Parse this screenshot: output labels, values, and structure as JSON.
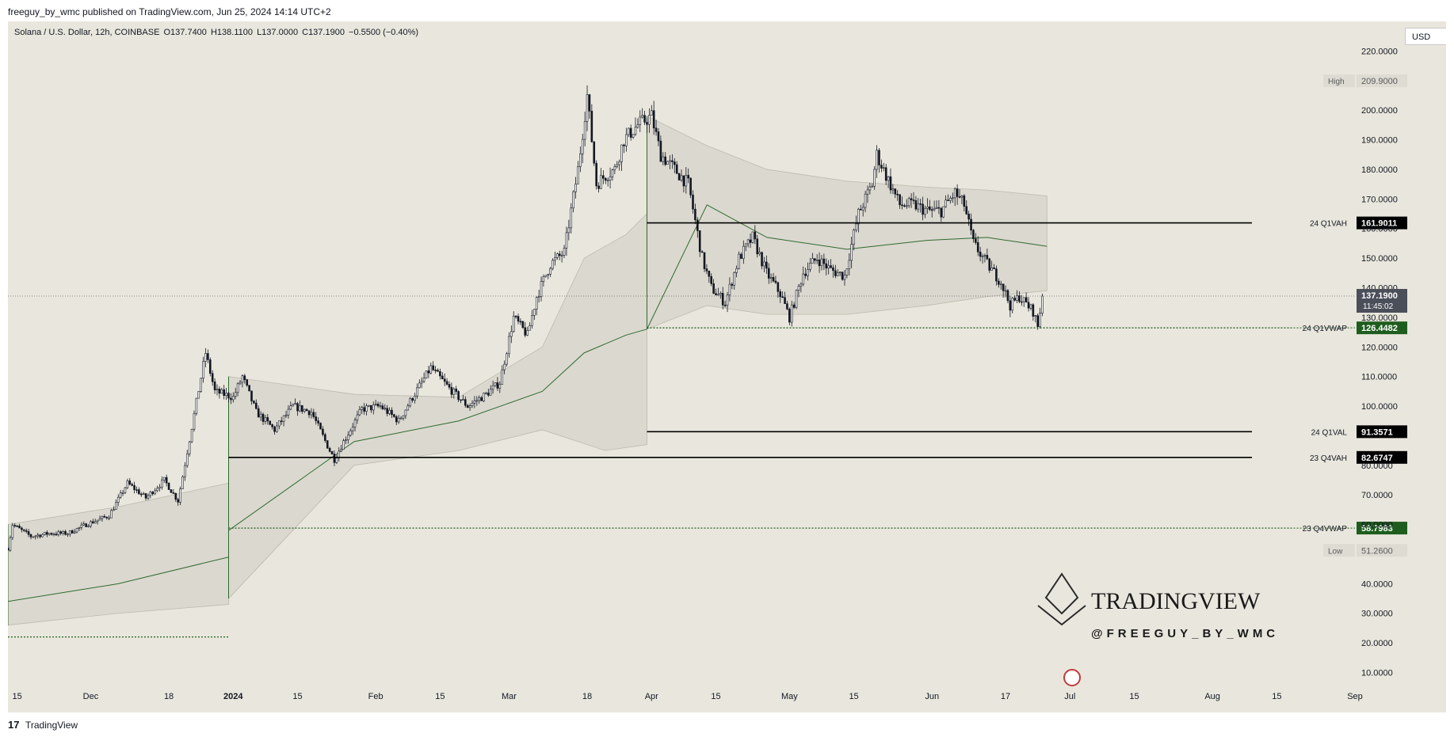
{
  "header": {
    "published": "freeguy_by_wmc published on TradingView.com, Jun 25, 2024 14:14 UTC+2"
  },
  "legend": {
    "symbol": "Solana / U.S. Dollar, 12h, COINBASE",
    "open": "O137.7400",
    "high": "H138.1100",
    "low": "L137.0000",
    "close": "C137.1900",
    "change": "−0.5500 (−0.40%)"
  },
  "currency_button": "USD",
  "footer": {
    "brand": "TradingView",
    "logo_glyph": "17"
  },
  "watermark": {
    "title": "TRADINGVIEW",
    "handle": "@FREEGUY_BY_WMC"
  },
  "colors": {
    "background": "#e9e7dd",
    "candle": "#131722",
    "vwap": "#2e6b2e",
    "band": "#d9d6cd",
    "level_label_bg": "#000000",
    "vwap_label_bg": "#1e5d1e"
  },
  "chart_data": {
    "type": "candlestick",
    "symbol": "SOL/USD",
    "interval": "12h",
    "ylim": [
      8,
      230
    ],
    "y_ticks": [
      "10.0000",
      "20.0000",
      "30.0000",
      "40.0000",
      "60.0000",
      "70.0000",
      "80.0000",
      "100.0000",
      "110.0000",
      "120.0000",
      "130.0000",
      "140.0000",
      "150.0000",
      "160.0000",
      "170.0000",
      "180.0000",
      "190.0000",
      "200.0000",
      "220.0000"
    ],
    "x_ticks": [
      {
        "label": "15",
        "date": "2023-11-15"
      },
      {
        "label": "Dec",
        "date": "2023-12-01"
      },
      {
        "label": "18",
        "date": "2023-12-18"
      },
      {
        "label": "2024",
        "date": "2024-01-01"
      },
      {
        "label": "15",
        "date": "2024-01-15"
      },
      {
        "label": "Feb",
        "date": "2024-02-01"
      },
      {
        "label": "15",
        "date": "2024-02-15"
      },
      {
        "label": "Mar",
        "date": "2024-03-01"
      },
      {
        "label": "18",
        "date": "2024-03-18"
      },
      {
        "label": "Apr",
        "date": "2024-04-01"
      },
      {
        "label": "15",
        "date": "2024-04-15"
      },
      {
        "label": "May",
        "date": "2024-05-01"
      },
      {
        "label": "15",
        "date": "2024-05-15"
      },
      {
        "label": "Jun",
        "date": "2024-06-01"
      },
      {
        "label": "17",
        "date": "2024-06-17"
      },
      {
        "label": "Jul",
        "date": "2024-07-01"
      },
      {
        "label": "15",
        "date": "2024-07-15"
      },
      {
        "label": "Aug",
        "date": "2024-08-01"
      },
      {
        "label": "15",
        "date": "2024-08-15"
      },
      {
        "label": "Sep",
        "date": "2024-09-01"
      }
    ],
    "x_range": [
      "2023-11-13",
      "2024-09-01"
    ],
    "series_anchors": [
      {
        "date": "2023-11-13",
        "price": 52
      },
      {
        "date": "2023-11-14",
        "price": 60
      },
      {
        "date": "2023-11-16",
        "price": 58
      },
      {
        "date": "2023-11-18",
        "price": 56
      },
      {
        "date": "2023-11-22",
        "price": 57
      },
      {
        "date": "2023-11-26",
        "price": 57
      },
      {
        "date": "2023-11-30",
        "price": 60
      },
      {
        "date": "2023-12-05",
        "price": 63
      },
      {
        "date": "2023-12-09",
        "price": 74
      },
      {
        "date": "2023-12-13",
        "price": 69
      },
      {
        "date": "2023-12-17",
        "price": 75
      },
      {
        "date": "2023-12-20",
        "price": 68
      },
      {
        "date": "2023-12-23",
        "price": 93
      },
      {
        "date": "2023-12-26",
        "price": 118
      },
      {
        "date": "2023-12-28",
        "price": 105
      },
      {
        "date": "2024-01-01",
        "price": 103
      },
      {
        "date": "2024-01-03",
        "price": 110
      },
      {
        "date": "2024-01-06",
        "price": 98
      },
      {
        "date": "2024-01-10",
        "price": 92
      },
      {
        "date": "2024-01-14",
        "price": 100
      },
      {
        "date": "2024-01-18",
        "price": 98
      },
      {
        "date": "2024-01-22",
        "price": 85
      },
      {
        "date": "2024-01-23",
        "price": 82
      },
      {
        "date": "2024-01-25",
        "price": 88
      },
      {
        "date": "2024-01-29",
        "price": 99
      },
      {
        "date": "2024-02-02",
        "price": 100
      },
      {
        "date": "2024-02-06",
        "price": 95
      },
      {
        "date": "2024-02-09",
        "price": 103
      },
      {
        "date": "2024-02-13",
        "price": 113
      },
      {
        "date": "2024-02-17",
        "price": 106
      },
      {
        "date": "2024-02-21",
        "price": 100
      },
      {
        "date": "2024-02-25",
        "price": 104
      },
      {
        "date": "2024-02-28",
        "price": 108
      },
      {
        "date": "2024-03-02",
        "price": 130
      },
      {
        "date": "2024-03-05",
        "price": 124
      },
      {
        "date": "2024-03-07",
        "price": 137
      },
      {
        "date": "2024-03-10",
        "price": 148
      },
      {
        "date": "2024-03-13",
        "price": 152
      },
      {
        "date": "2024-03-16",
        "price": 180
      },
      {
        "date": "2024-03-18",
        "price": 205
      },
      {
        "date": "2024-03-20",
        "price": 175
      },
      {
        "date": "2024-03-22",
        "price": 178
      },
      {
        "date": "2024-03-24",
        "price": 180
      },
      {
        "date": "2024-03-26",
        "price": 190
      },
      {
        "date": "2024-03-29",
        "price": 195
      },
      {
        "date": "2024-04-01",
        "price": 198
      },
      {
        "date": "2024-04-03",
        "price": 185
      },
      {
        "date": "2024-04-06",
        "price": 180
      },
      {
        "date": "2024-04-09",
        "price": 175
      },
      {
        "date": "2024-04-12",
        "price": 150
      },
      {
        "date": "2024-04-14",
        "price": 140
      },
      {
        "date": "2024-04-17",
        "price": 135
      },
      {
        "date": "2024-04-20",
        "price": 150
      },
      {
        "date": "2024-04-23",
        "price": 157
      },
      {
        "date": "2024-04-26",
        "price": 145
      },
      {
        "date": "2024-04-29",
        "price": 138
      },
      {
        "date": "2024-05-01",
        "price": 130
      },
      {
        "date": "2024-05-04",
        "price": 145
      },
      {
        "date": "2024-05-07",
        "price": 150
      },
      {
        "date": "2024-05-10",
        "price": 146
      },
      {
        "date": "2024-05-13",
        "price": 144
      },
      {
        "date": "2024-05-16",
        "price": 165
      },
      {
        "date": "2024-05-19",
        "price": 175
      },
      {
        "date": "2024-05-20",
        "price": 185
      },
      {
        "date": "2024-05-22",
        "price": 178
      },
      {
        "date": "2024-05-25",
        "price": 168
      },
      {
        "date": "2024-05-28",
        "price": 168
      },
      {
        "date": "2024-05-31",
        "price": 166
      },
      {
        "date": "2024-06-03",
        "price": 166
      },
      {
        "date": "2024-06-06",
        "price": 172
      },
      {
        "date": "2024-06-08",
        "price": 168
      },
      {
        "date": "2024-06-10",
        "price": 155
      },
      {
        "date": "2024-06-13",
        "price": 148
      },
      {
        "date": "2024-06-16",
        "price": 142
      },
      {
        "date": "2024-06-18",
        "price": 134
      },
      {
        "date": "2024-06-20",
        "price": 137
      },
      {
        "date": "2024-06-23",
        "price": 132
      },
      {
        "date": "2024-06-24",
        "price": 127
      },
      {
        "date": "2024-06-25",
        "price": 137.19
      }
    ],
    "high": {
      "label": "High",
      "value": "209.9000",
      "price": 209.9
    },
    "low": {
      "label": "Low",
      "value": "51.2600",
      "price": 51.26
    },
    "current_price": {
      "value": "137.1900",
      "countdown": "11:45:02",
      "price": 137.19
    },
    "levels": [
      {
        "name": "24 Q1VAH",
        "value": "161.9011",
        "price": 161.9011,
        "style": "solid",
        "start": "2024-03-31",
        "end": "2024-06-26",
        "color": "#000000"
      },
      {
        "name": "24 Q1VWAP",
        "value": "126.4482",
        "price": 126.4482,
        "style": "dotted",
        "start": "2024-03-31",
        "end": "2024-09-01",
        "color": "#1e5d1e"
      },
      {
        "name": "24 Q1VAL",
        "value": "91.3571",
        "price": 91.3571,
        "style": "solid",
        "start": "2024-03-31",
        "end": "2024-06-26",
        "color": "#000000"
      },
      {
        "name": "23 Q4VAH",
        "value": "82.6747",
        "price": 82.6747,
        "style": "solid",
        "start": "2023-12-31",
        "end": "2024-06-26",
        "color": "#000000"
      },
      {
        "name": "23 Q4VWAP",
        "value": "58.7983",
        "price": 58.7983,
        "style": "dotted",
        "start": "2023-12-31",
        "end": "2024-09-01",
        "color": "#1e5d1e"
      }
    ],
    "prior_vwap": {
      "price": 22,
      "start": "2023-11-13",
      "end": "2023-12-31"
    },
    "anchored_vwap_bands": [
      {
        "start": "2023-11-13",
        "end": "2023-12-31",
        "upper": [
          [
            0,
            60
          ],
          [
            0.5,
            66
          ],
          [
            1,
            74
          ]
        ],
        "mid": [
          [
            0,
            34
          ],
          [
            0.5,
            40
          ],
          [
            1,
            49
          ]
        ],
        "lower": [
          [
            0,
            26
          ],
          [
            0.5,
            30
          ],
          [
            1,
            33
          ]
        ]
      },
      {
        "start": "2023-12-31",
        "end": "2024-03-31",
        "upper": [
          [
            0,
            110
          ],
          [
            0.3,
            104
          ],
          [
            0.55,
            103
          ],
          [
            0.75,
            120
          ],
          [
            0.85,
            150
          ],
          [
            0.95,
            158
          ],
          [
            1,
            165
          ]
        ],
        "mid": [
          [
            0,
            58
          ],
          [
            0.3,
            88
          ],
          [
            0.55,
            95
          ],
          [
            0.75,
            105
          ],
          [
            0.85,
            118
          ],
          [
            0.95,
            124
          ],
          [
            1,
            126
          ]
        ],
        "lower": [
          [
            0,
            35
          ],
          [
            0.3,
            80
          ],
          [
            0.55,
            85
          ],
          [
            0.75,
            92
          ],
          [
            0.9,
            85
          ],
          [
            1,
            87
          ]
        ]
      },
      {
        "start": "2024-03-31",
        "end": "2024-06-26",
        "upper": [
          [
            0,
            198
          ],
          [
            0.15,
            188
          ],
          [
            0.3,
            180
          ],
          [
            0.5,
            176
          ],
          [
            0.7,
            174
          ],
          [
            0.85,
            173
          ],
          [
            1,
            171
          ]
        ],
        "mid": [
          [
            0,
            126
          ],
          [
            0.15,
            168
          ],
          [
            0.3,
            157
          ],
          [
            0.5,
            153
          ],
          [
            0.7,
            156
          ],
          [
            0.85,
            157
          ],
          [
            1,
            154
          ]
        ],
        "lower": [
          [
            0,
            126
          ],
          [
            0.15,
            134
          ],
          [
            0.3,
            131
          ],
          [
            0.5,
            131
          ],
          [
            0.7,
            134
          ],
          [
            0.85,
            137
          ],
          [
            1,
            139
          ]
        ]
      }
    ]
  }
}
